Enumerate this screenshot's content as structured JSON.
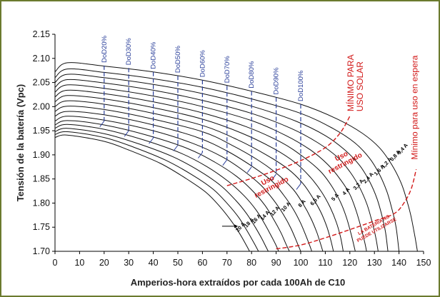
{
  "chart_data": {
    "type": "line",
    "xlabel": "Amperios-hora extraídos por cada 100Ah de C10",
    "ylabel": "Tensión de la batería (Vpc)",
    "xlim": [
      0,
      150
    ],
    "ylim": [
      1.7,
      2.15
    ],
    "xticks": [
      "0",
      "10",
      "20",
      "30",
      "40",
      "50",
      "60",
      "70",
      "80",
      "90",
      "100",
      "110",
      "120",
      "130",
      "140",
      "150"
    ],
    "yticks": [
      "1.70",
      "1.75",
      "1.80",
      "1.85",
      "1.90",
      "1.95",
      "2.00",
      "2.05",
      "2.10",
      "2.15"
    ],
    "grid": false,
    "series": [
      {
        "name": "0,4 A",
        "values": [
          [
            0,
            2.072
          ],
          [
            5,
            2.091
          ],
          [
            20,
            2.084
          ],
          [
            40,
            2.072
          ],
          [
            60,
            2.055
          ],
          [
            80,
            2.032
          ],
          [
            100,
            2.005
          ],
          [
            115,
            1.974
          ],
          [
            125,
            1.945
          ],
          [
            132,
            1.915
          ],
          [
            137,
            1.88
          ],
          [
            141,
            1.84
          ],
          [
            143.5,
            1.8
          ],
          [
            145,
            1.77
          ],
          [
            146.5,
            1.73
          ],
          [
            147.5,
            1.7
          ]
        ]
      },
      {
        "name": "0,8 A",
        "values": [
          [
            0,
            2.06
          ],
          [
            5,
            2.078
          ],
          [
            20,
            2.071
          ],
          [
            40,
            2.058
          ],
          [
            60,
            2.04
          ],
          [
            80,
            2.016
          ],
          [
            100,
            1.986
          ],
          [
            113,
            1.955
          ],
          [
            122,
            1.925
          ],
          [
            128,
            1.893
          ],
          [
            132,
            1.86
          ],
          [
            135,
            1.825
          ],
          [
            137,
            1.79
          ],
          [
            138.8,
            1.75
          ],
          [
            140,
            1.7
          ]
        ]
      },
      {
        "name": "1,2 A",
        "values": [
          [
            0,
            2.05
          ],
          [
            5,
            2.067
          ],
          [
            20,
            2.06
          ],
          [
            40,
            2.046
          ],
          [
            60,
            2.027
          ],
          [
            80,
            2.001
          ],
          [
            98,
            1.97
          ],
          [
            110,
            1.94
          ],
          [
            118,
            1.91
          ],
          [
            124,
            1.878
          ],
          [
            128,
            1.845
          ],
          [
            131,
            1.81
          ],
          [
            133,
            1.775
          ],
          [
            134.5,
            1.74
          ],
          [
            135.5,
            1.7
          ]
        ]
      },
      {
        "name": "1,6 A",
        "values": [
          [
            0,
            2.04
          ],
          [
            5,
            2.056
          ],
          [
            20,
            2.049
          ],
          [
            40,
            2.034
          ],
          [
            60,
            2.013
          ],
          [
            80,
            1.986
          ],
          [
            96,
            1.955
          ],
          [
            107,
            1.925
          ],
          [
            115,
            1.895
          ],
          [
            120,
            1.865
          ],
          [
            124,
            1.832
          ],
          [
            127,
            1.797
          ],
          [
            129,
            1.762
          ],
          [
            130.5,
            1.73
          ],
          [
            131.5,
            1.7
          ]
        ]
      },
      {
        "name": "2,4 A",
        "values": [
          [
            0,
            2.03
          ],
          [
            5,
            2.045
          ],
          [
            20,
            2.038
          ],
          [
            40,
            2.022
          ],
          [
            60,
            2.0
          ],
          [
            80,
            1.971
          ],
          [
            94,
            1.94
          ],
          [
            104,
            1.91
          ],
          [
            111,
            1.88
          ],
          [
            116,
            1.85
          ],
          [
            120,
            1.818
          ],
          [
            122.5,
            1.785
          ],
          [
            124.5,
            1.75
          ],
          [
            126,
            1.72
          ],
          [
            126.8,
            1.7
          ]
        ]
      },
      {
        "name": "3,2 A",
        "values": [
          [
            0,
            2.02
          ],
          [
            5,
            2.034
          ],
          [
            20,
            2.027
          ],
          [
            40,
            2.01
          ],
          [
            60,
            1.987
          ],
          [
            78,
            1.958
          ],
          [
            92,
            1.926
          ],
          [
            101,
            1.896
          ],
          [
            108,
            1.866
          ],
          [
            112.5,
            1.836
          ],
          [
            116,
            1.804
          ],
          [
            118.5,
            1.772
          ],
          [
            120.3,
            1.74
          ],
          [
            121.5,
            1.715
          ],
          [
            122.2,
            1.7
          ]
        ]
      },
      {
        "name": "4 A",
        "values": [
          [
            0,
            2.01
          ],
          [
            5,
            2.023
          ],
          [
            20,
            2.016
          ],
          [
            40,
            1.998
          ],
          [
            60,
            1.974
          ],
          [
            76,
            1.945
          ],
          [
            89,
            1.913
          ],
          [
            98,
            1.883
          ],
          [
            104,
            1.853
          ],
          [
            108.5,
            1.823
          ],
          [
            112,
            1.791
          ],
          [
            114.5,
            1.76
          ],
          [
            116.2,
            1.73
          ],
          [
            117.3,
            1.7
          ]
        ]
      },
      {
        "name": "5 A",
        "values": [
          [
            0,
            2.0
          ],
          [
            5,
            2.012
          ],
          [
            20,
            2.005
          ],
          [
            40,
            1.986
          ],
          [
            60,
            1.961
          ],
          [
            74,
            1.932
          ],
          [
            86,
            1.9
          ],
          [
            95,
            1.87
          ],
          [
            101,
            1.84
          ],
          [
            105,
            1.81
          ],
          [
            108.3,
            1.78
          ],
          [
            110.7,
            1.75
          ],
          [
            112.3,
            1.722
          ],
          [
            113.3,
            1.7
          ]
        ]
      },
      {
        "name": "6,5 A",
        "values": [
          [
            0,
            1.99
          ],
          [
            5,
            2.001
          ],
          [
            20,
            1.994
          ],
          [
            40,
            1.974
          ],
          [
            60,
            1.948
          ],
          [
            72,
            1.92
          ],
          [
            83,
            1.888
          ],
          [
            91,
            1.858
          ],
          [
            97,
            1.828
          ],
          [
            101,
            1.798
          ],
          [
            104.2,
            1.768
          ],
          [
            106.5,
            1.74
          ],
          [
            108.1,
            1.715
          ],
          [
            109,
            1.7
          ]
        ]
      },
      {
        "name": "8 A",
        "values": [
          [
            0,
            1.98
          ],
          [
            5,
            1.99
          ],
          [
            20,
            1.983
          ],
          [
            40,
            1.962
          ],
          [
            58,
            1.936
          ],
          [
            70,
            1.908
          ],
          [
            80,
            1.877
          ],
          [
            88,
            1.847
          ],
          [
            93,
            1.817
          ],
          [
            97,
            1.787
          ],
          [
            100,
            1.758
          ],
          [
            102.3,
            1.73
          ],
          [
            103.8,
            1.71
          ],
          [
            104.5,
            1.7
          ]
        ]
      },
      {
        "name": "10 A",
        "values": [
          [
            0,
            1.97
          ],
          [
            5,
            1.98
          ],
          [
            20,
            1.972
          ],
          [
            40,
            1.95
          ],
          [
            56,
            1.924
          ],
          [
            68,
            1.896
          ],
          [
            77,
            1.866
          ],
          [
            84,
            1.836
          ],
          [
            89,
            1.806
          ],
          [
            93,
            1.776
          ],
          [
            96,
            1.748
          ],
          [
            98.2,
            1.722
          ],
          [
            99.5,
            1.706
          ],
          [
            100,
            1.7
          ]
        ]
      },
      {
        "name": "12 A",
        "values": [
          [
            0,
            1.962
          ],
          [
            5,
            1.971
          ],
          [
            20,
            1.962
          ],
          [
            38,
            1.94
          ],
          [
            54,
            1.913
          ],
          [
            65,
            1.885
          ],
          [
            74,
            1.855
          ],
          [
            80.5,
            1.825
          ],
          [
            85.5,
            1.795
          ],
          [
            89,
            1.766
          ],
          [
            92,
            1.738
          ],
          [
            94,
            1.715
          ],
          [
            95.4,
            1.7
          ]
        ]
      },
      {
        "name": "14 A",
        "values": [
          [
            0,
            1.955
          ],
          [
            5,
            1.963
          ],
          [
            20,
            1.953
          ],
          [
            36,
            1.931
          ],
          [
            51,
            1.904
          ],
          [
            62,
            1.875
          ],
          [
            70.5,
            1.845
          ],
          [
            77,
            1.815
          ],
          [
            81.8,
            1.786
          ],
          [
            85.2,
            1.758
          ],
          [
            88,
            1.732
          ],
          [
            90,
            1.712
          ],
          [
            91,
            1.7
          ]
        ]
      },
      {
        "name": "16 A",
        "values": [
          [
            0,
            1.948
          ],
          [
            5,
            1.955
          ],
          [
            20,
            1.944
          ],
          [
            34,
            1.923
          ],
          [
            48,
            1.896
          ],
          [
            59,
            1.866
          ],
          [
            67.5,
            1.836
          ],
          [
            73.5,
            1.806
          ],
          [
            78,
            1.778
          ],
          [
            81.5,
            1.75
          ],
          [
            84.2,
            1.726
          ],
          [
            86,
            1.708
          ],
          [
            86.8,
            1.7
          ]
        ]
      },
      {
        "name": "18 A",
        "values": [
          [
            0,
            1.942
          ],
          [
            5,
            1.948
          ],
          [
            20,
            1.936
          ],
          [
            32,
            1.916
          ],
          [
            45,
            1.889
          ],
          [
            56,
            1.858
          ],
          [
            64.5,
            1.828
          ],
          [
            70.3,
            1.798
          ],
          [
            74.8,
            1.77
          ],
          [
            78,
            1.744
          ],
          [
            80.7,
            1.72
          ],
          [
            82.5,
            1.703
          ],
          [
            82.8,
            1.7
          ]
        ]
      },
      {
        "name": "20 A",
        "values": [
          [
            0,
            1.936
          ],
          [
            5,
            1.941
          ],
          [
            20,
            1.928
          ],
          [
            30,
            1.91
          ],
          [
            43,
            1.882
          ],
          [
            53,
            1.852
          ],
          [
            61.5,
            1.822
          ],
          [
            67.2,
            1.792
          ],
          [
            71.6,
            1.764
          ],
          [
            75,
            1.738
          ],
          [
            77.5,
            1.716
          ],
          [
            79.2,
            1.7
          ]
        ]
      }
    ],
    "dod_lines": [
      {
        "label": "DoD20%",
        "x": 20,
        "y_top": 2.085,
        "y_bottom": 1.97
      },
      {
        "label": "DoD30%",
        "x": 30,
        "y_top": 2.08,
        "y_bottom": 1.95
      },
      {
        "label": "DoD40%",
        "x": 40,
        "y_top": 2.072,
        "y_bottom": 1.935
      },
      {
        "label": "DoD50%",
        "x": 50,
        "y_top": 2.064,
        "y_bottom": 1.92
      },
      {
        "label": "DoD60%",
        "x": 60,
        "y_top": 2.055,
        "y_bottom": 1.905
      },
      {
        "label": "DoD70%",
        "x": 70,
        "y_top": 2.043,
        "y_bottom": 1.89
      },
      {
        "label": "DoD80%",
        "x": 80,
        "y_top": 2.032,
        "y_bottom": 1.875
      },
      {
        "label": "DoD90%",
        "x": 90,
        "y_top": 2.019,
        "y_bottom": 1.86
      },
      {
        "label": "DoD100%",
        "x": 100,
        "y_top": 2.005,
        "y_bottom": 1.84
      }
    ],
    "limit_solar": {
      "label": [
        "MÍNIMO PARA",
        "USO SOLAR"
      ],
      "values": [
        [
          70,
          1.836
        ],
        [
          80,
          1.851
        ],
        [
          90,
          1.868
        ],
        [
          100,
          1.888
        ],
        [
          110,
          1.915
        ],
        [
          116,
          1.945
        ],
        [
          120,
          1.98
        ]
      ]
    },
    "limit_standby": {
      "label": "Mínimo para uso en espera",
      "values": [
        [
          90,
          1.705
        ],
        [
          100,
          1.713
        ],
        [
          110,
          1.728
        ],
        [
          120,
          1.745
        ],
        [
          130,
          1.763
        ],
        [
          138,
          1.778
        ],
        [
          142,
          1.8
        ],
        [
          145,
          1.83
        ],
        [
          147,
          1.87
        ]
      ]
    },
    "zone_labels": [
      {
        "text": [
          "Uso",
          "restringido"
        ],
        "x": 117,
        "y": 1.893,
        "angle": -28
      },
      {
        "text": [
          "Uso",
          "restringido"
        ],
        "x": 87,
        "y": 1.843,
        "angle": -28
      },
      {
        "text": [
          "LA BATERIA NO",
          "PUEDE UTILIZARSE"
        ],
        "x": 130,
        "y": 1.752,
        "angle": -30
      }
    ],
    "curve_labels": [
      {
        "text": "0,4 A",
        "x": 142,
        "y": 1.91
      },
      {
        "text": "0,8 A",
        "x": 139,
        "y": 1.896
      },
      {
        "text": "1,2 A",
        "x": 135.5,
        "y": 1.881
      },
      {
        "text": "1,6 A",
        "x": 132.5,
        "y": 1.866
      },
      {
        "text": "2,4 A",
        "x": 128,
        "y": 1.85
      },
      {
        "text": "3,2 A",
        "x": 124,
        "y": 1.836
      },
      {
        "text": "4 A",
        "x": 119,
        "y": 1.822
      },
      {
        "text": "5 A",
        "x": 114.5,
        "y": 1.81
      },
      {
        "text": "6,5 A",
        "x": 106.5,
        "y": 1.804
      },
      {
        "text": "8 A",
        "x": 101,
        "y": 1.797
      },
      {
        "text": "10 A",
        "x": 94.5,
        "y": 1.79
      },
      {
        "text": "12 A",
        "x": 90,
        "y": 1.781
      },
      {
        "text": "14 A",
        "x": 86,
        "y": 1.772
      },
      {
        "text": "16 A",
        "x": 82.5,
        "y": 1.765
      },
      {
        "text": "18 A",
        "x": 79.5,
        "y": 1.757
      },
      {
        "text": "20 A",
        "x": 76,
        "y": 1.748
      }
    ],
    "colors": {
      "curve": "#111111",
      "dod": "#2a3f9a",
      "limit": "#d21a1a",
      "frame": "#6b7a2e"
    }
  }
}
